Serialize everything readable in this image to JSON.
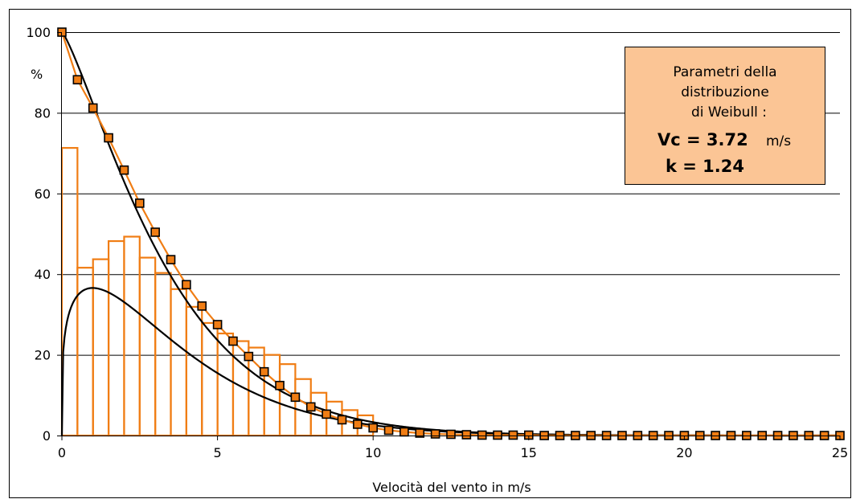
{
  "chart_data": {
    "type": "bar",
    "xlabel": "Velocità del vento in m/s",
    "ylabel": "%",
    "xlim": [
      0,
      25
    ],
    "ylim": [
      0,
      100
    ],
    "x_ticks": [
      "0",
      "5",
      "10",
      "15",
      "20",
      "25"
    ],
    "y_ticks": [
      "0",
      "20",
      "40",
      "60",
      "80",
      "100"
    ],
    "grid": "horizontal",
    "colors": {
      "histogram": "#f07d14",
      "marker_fill": "#f07d14",
      "curve": "#000000",
      "box_fill": "#fbc595"
    },
    "histogram": {
      "bin_width": 0.5,
      "bins_start": [
        0,
        0.5,
        1,
        1.5,
        2,
        2.5,
        3,
        3.5,
        4,
        4.5,
        5,
        5.5,
        6,
        6.5,
        7,
        7.5,
        8,
        8.5,
        9,
        9.5
      ],
      "values": [
        71.3,
        41.6,
        43.7,
        48.2,
        49.3,
        44.1,
        40.3,
        36.3,
        31.9,
        27.9,
        25.3,
        23.4,
        21.8,
        20.0,
        17.7,
        14.0,
        10.6,
        8.4,
        6.3,
        5.0
      ]
    },
    "cumulative_observed": {
      "x": [
        0,
        0.5,
        1,
        1.5,
        2,
        2.5,
        3,
        3.5,
        4,
        4.5,
        5,
        5.5,
        6,
        6.5,
        7,
        7.5,
        8,
        8.5,
        9,
        9.5,
        10,
        10.5,
        11,
        11.5,
        12,
        12.5,
        13,
        13.5,
        14,
        14.5,
        15,
        15.5,
        16,
        16.5,
        17,
        17.5,
        18,
        18.5,
        19,
        19.5,
        20,
        20.5,
        21,
        21.5,
        22,
        22.5,
        23,
        23.5,
        24,
        24.5,
        25
      ],
      "y": [
        100,
        88.2,
        81.2,
        73.8,
        65.8,
        57.6,
        50.4,
        43.6,
        37.4,
        32.1,
        27.5,
        23.4,
        19.6,
        15.8,
        12.4,
        9.5,
        7.1,
        5.3,
        3.9,
        2.8,
        1.9,
        1.3,
        0.9,
        0.6,
        0.4,
        0.3,
        0.2,
        0.1,
        0.1,
        0.1,
        0.1,
        0,
        0,
        0,
        0,
        0,
        0,
        0,
        0,
        0,
        0,
        0,
        0,
        0,
        0,
        0,
        0,
        0,
        0,
        0,
        0
      ]
    },
    "weibull": {
      "Vc": 3.72,
      "k": 1.24,
      "pdf_scale": 183
    },
    "parameters_box": {
      "line1": "Parametri della",
      "line2": "distribuzione",
      "line3": "di Weibull :",
      "vc_text": "Vc = 3.72",
      "vc_unit": "m/s",
      "k_text": "k = 1.24"
    }
  }
}
